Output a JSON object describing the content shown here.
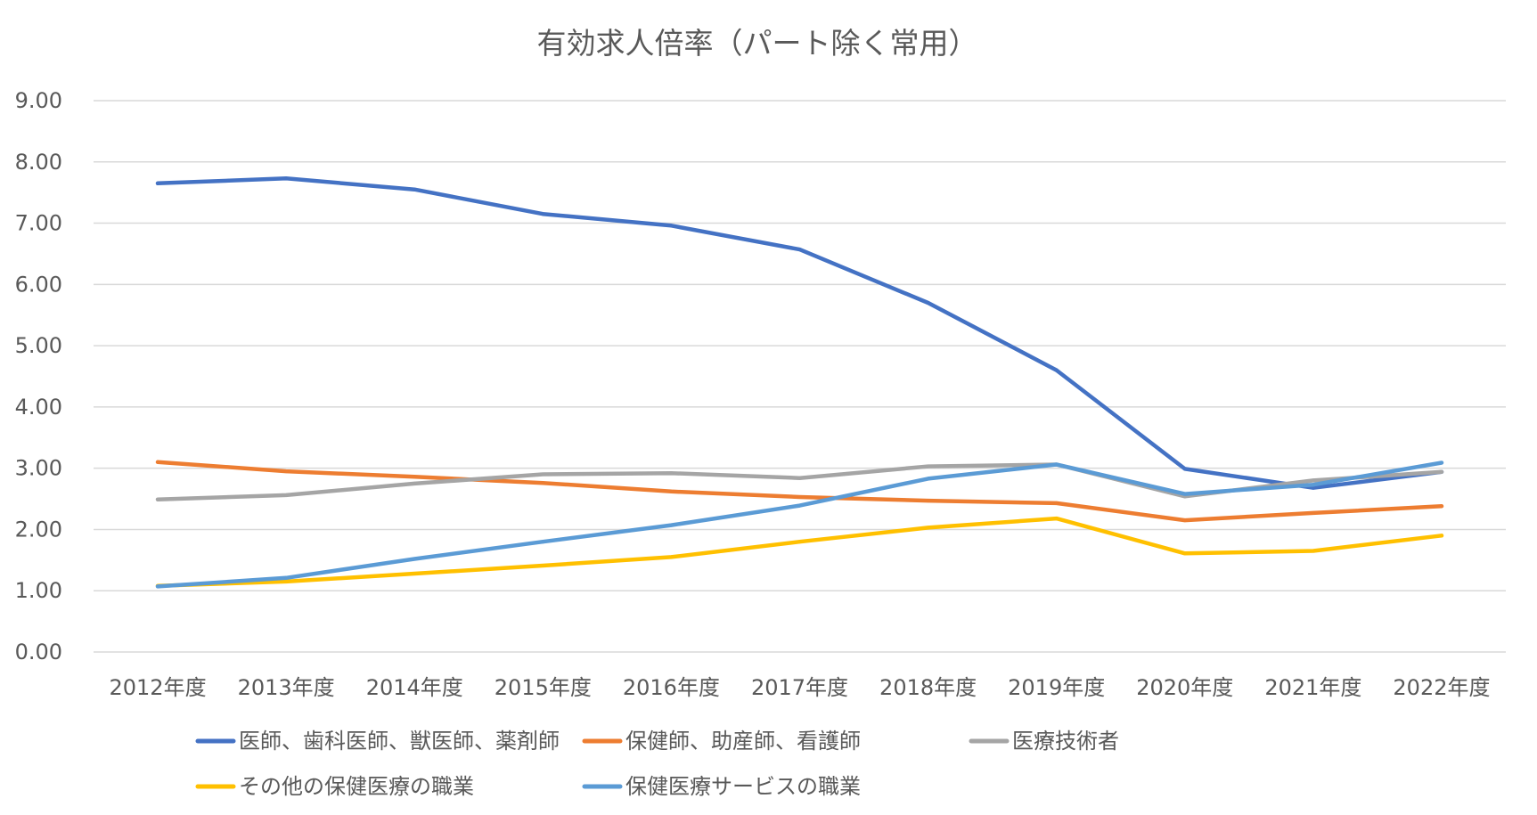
{
  "chart_data": {
    "type": "line",
    "title": "有効求人倍率（パート除く常用）",
    "xlabel": "",
    "ylabel": "",
    "ylim": [
      0,
      9
    ],
    "y_ticks": [
      "0.00",
      "1.00",
      "2.00",
      "3.00",
      "4.00",
      "5.00",
      "6.00",
      "7.00",
      "8.00",
      "9.00"
    ],
    "grid": true,
    "legend_position": "bottom",
    "categories": [
      "2012年度",
      "2013年度",
      "2014年度",
      "2015年度",
      "2016年度",
      "2017年度",
      "2018年度",
      "2019年度",
      "2020年度",
      "2021年度",
      "2022年度"
    ],
    "series": [
      {
        "name": "医師、歯科医師、獣医師、薬剤師",
        "color": "#4472c4",
        "values": [
          7.65,
          7.73,
          7.55,
          7.15,
          6.96,
          6.57,
          5.7,
          4.6,
          2.99,
          2.68,
          2.94
        ]
      },
      {
        "name": "保健師、助産師、看護師",
        "color": "#ed7d31",
        "values": [
          3.1,
          2.95,
          2.86,
          2.76,
          2.62,
          2.53,
          2.47,
          2.43,
          2.15,
          2.27,
          2.38
        ]
      },
      {
        "name": "医療技術者",
        "color": "#a5a5a5",
        "values": [
          2.49,
          2.56,
          2.75,
          2.9,
          2.92,
          2.84,
          3.03,
          3.06,
          2.54,
          2.8,
          2.94
        ]
      },
      {
        "name": "その他の保健医療の職業",
        "color": "#ffc000",
        "values": [
          1.08,
          1.15,
          1.28,
          1.41,
          1.55,
          1.8,
          2.03,
          2.18,
          1.61,
          1.65,
          1.9
        ]
      },
      {
        "name": "保健医療サービスの職業",
        "color": "#5b9bd5",
        "values": [
          1.07,
          1.21,
          1.52,
          1.8,
          2.07,
          2.39,
          2.83,
          3.06,
          2.58,
          2.73,
          3.09
        ]
      }
    ]
  }
}
